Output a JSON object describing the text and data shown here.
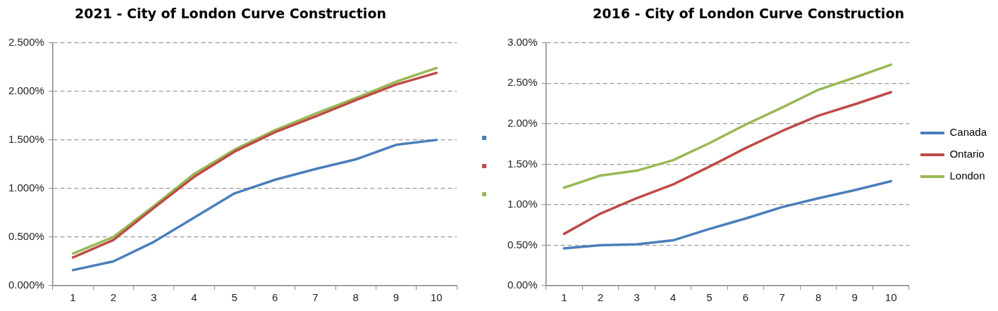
{
  "chart_data": [
    {
      "type": "line",
      "title": "2021 - City of London Curve Construction",
      "categories": [
        "1",
        "2",
        "3",
        "4",
        "5",
        "6",
        "7",
        "8",
        "9",
        "10"
      ],
      "series": [
        {
          "color": "#4a7ebb",
          "values": [
            0.16,
            0.25,
            0.45,
            0.7,
            0.95,
            1.09,
            1.2,
            1.3,
            1.45,
            1.5
          ]
        },
        {
          "color": "#be4b48",
          "values": [
            0.29,
            0.47,
            0.8,
            1.12,
            1.38,
            1.58,
            1.74,
            1.91,
            2.07,
            2.19
          ]
        },
        {
          "color": "#98b954",
          "values": [
            0.33,
            0.5,
            0.82,
            1.15,
            1.4,
            1.6,
            1.77,
            1.93,
            2.1,
            2.24
          ]
        }
      ],
      "ylim": [
        0,
        2.5
      ],
      "yticks": [
        {
          "value": 0,
          "label": "0.000%"
        },
        {
          "value": 0.5,
          "label": "0.500%"
        },
        {
          "value": 1,
          "label": "1.000%"
        },
        {
          "value": 1.5,
          "label": "1.500%"
        },
        {
          "value": 2,
          "label": "2.000%"
        },
        {
          "value": 2.5,
          "label": "2.500%"
        }
      ],
      "grid": "y",
      "legend": "right",
      "marker": "none",
      "line_style": "solid"
    },
    {
      "type": "line",
      "title": "2016 - City of London Curve Construction",
      "categories": [
        "1",
        "2",
        "3",
        "4",
        "5",
        "6",
        "7",
        "8",
        "9",
        "10"
      ],
      "series": [
        {
          "name": "Canada",
          "color": "#4a7ebb",
          "values": [
            0.46,
            0.5,
            0.51,
            0.56,
            0.7,
            0.83,
            0.97,
            1.08,
            1.18,
            1.29
          ]
        },
        {
          "name": "Ontario",
          "color": "#be4b48",
          "values": [
            0.64,
            0.89,
            1.08,
            1.25,
            1.47,
            1.7,
            1.91,
            2.1,
            2.24,
            2.39
          ]
        },
        {
          "name": "London",
          "color": "#98b954",
          "values": [
            1.21,
            1.36,
            1.42,
            1.55,
            1.76,
            1.99,
            2.2,
            2.42,
            2.57,
            2.73
          ]
        }
      ],
      "ylim": [
        0,
        3
      ],
      "yticks": [
        {
          "value": 0,
          "label": "0.00%"
        },
        {
          "value": 0.5,
          "label": "0.50%"
        },
        {
          "value": 1,
          "label": "1.00%"
        },
        {
          "value": 1.5,
          "label": "1.50%"
        },
        {
          "value": 2,
          "label": "2.00%"
        },
        {
          "value": 2.5,
          "label": "2.50%"
        },
        {
          "value": 3,
          "label": "3.00%"
        }
      ],
      "grid": "y",
      "legend": "right",
      "marker": "none",
      "line_style": "solid"
    }
  ]
}
